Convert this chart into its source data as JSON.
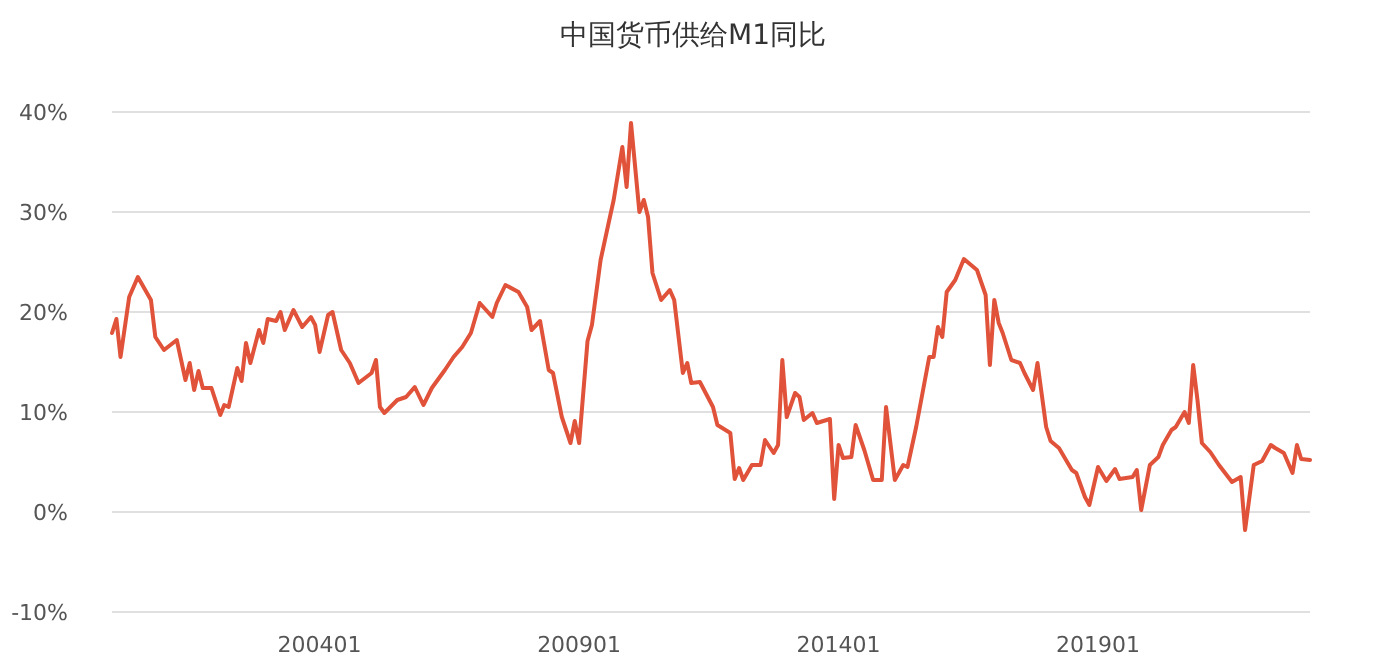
{
  "chart_data": {
    "type": "line",
    "title": "中国货币供给M1同比",
    "grid": "y",
    "marker": "none",
    "line_style": "solid",
    "xlim": [
      "2000-01",
      "2023-02"
    ],
    "xticks": [
      {
        "value": "2004-01",
        "label": "200401"
      },
      {
        "value": "2009-01",
        "label": "200901"
      },
      {
        "value": "2014-01",
        "label": "201401"
      },
      {
        "value": "2019-01",
        "label": "201901"
      }
    ],
    "ylim": [
      -10,
      40
    ],
    "yticks": [
      {
        "value": -10,
        "label": "-10%"
      },
      {
        "value": 0,
        "label": "0%"
      },
      {
        "value": 10,
        "label": "10%"
      },
      {
        "value": 20,
        "label": "20%"
      },
      {
        "value": 30,
        "label": "30%"
      },
      {
        "value": 40,
        "label": "40%"
      }
    ],
    "series": [
      {
        "color": "#e0533a",
        "x": [
          "2000-01",
          "2000-02",
          "2000-03",
          "2000-05",
          "2000-07",
          "2000-10",
          "2000-11",
          "2001-01",
          "2001-04",
          "2001-06",
          "2001-07",
          "2001-08",
          "2001-09",
          "2001-10",
          "2001-12",
          "2002-02",
          "2002-03",
          "2002-04",
          "2002-06",
          "2002-07",
          "2002-08",
          "2002-09",
          "2002-11",
          "2002-12",
          "2003-01",
          "2003-03",
          "2003-04",
          "2003-05",
          "2003-07",
          "2003-09",
          "2003-11",
          "2003-12",
          "2004-01",
          "2004-03",
          "2004-04",
          "2004-06",
          "2004-08",
          "2004-10",
          "2005-01",
          "2005-02",
          "2005-03",
          "2005-04",
          "2005-07",
          "2005-09",
          "2005-11",
          "2006-01",
          "2006-03",
          "2006-06",
          "2006-08",
          "2006-10",
          "2006-12",
          "2007-02",
          "2007-05",
          "2007-06",
          "2007-08",
          "2007-11",
          "2008-01",
          "2008-02",
          "2008-04",
          "2008-06",
          "2008-07",
          "2008-09",
          "2008-11",
          "2008-12",
          "2009-01",
          "2009-03",
          "2009-04",
          "2009-06",
          "2009-08",
          "2009-09",
          "2009-11",
          "2009-12",
          "2010-01",
          "2010-03",
          "2010-04",
          "2010-05",
          "2010-06",
          "2010-08",
          "2010-10",
          "2010-11",
          "2011-01",
          "2011-02",
          "2011-03",
          "2011-05",
          "2011-08",
          "2011-09",
          "2011-12",
          "2012-01",
          "2012-02",
          "2012-03",
          "2012-05",
          "2012-07",
          "2012-08",
          "2012-10",
          "2012-11",
          "2012-12",
          "2013-01",
          "2013-03",
          "2013-04",
          "2013-05",
          "2013-07",
          "2013-08",
          "2013-11",
          "2013-12",
          "2014-01",
          "2014-02",
          "2014-04",
          "2014-05",
          "2014-07",
          "2014-09",
          "2014-11",
          "2014-12",
          "2015-02",
          "2015-04",
          "2015-05",
          "2015-07",
          "2015-10",
          "2015-11",
          "2015-12",
          "2016-01",
          "2016-02",
          "2016-04",
          "2016-06",
          "2016-09",
          "2016-11",
          "2016-12",
          "2017-01",
          "2017-02",
          "2017-03",
          "2017-05",
          "2017-07",
          "2017-08",
          "2017-10",
          "2017-11",
          "2018-01",
          "2018-02",
          "2018-04",
          "2018-07",
          "2018-08",
          "2018-10",
          "2018-11",
          "2019-01",
          "2019-03",
          "2019-05",
          "2019-06",
          "2019-09",
          "2019-10",
          "2019-11",
          "2020-01",
          "2020-03",
          "2020-04",
          "2020-06",
          "2020-07",
          "2020-09",
          "2020-10",
          "2020-11",
          "2020-12",
          "2021-01",
          "2021-03",
          "2021-05",
          "2021-08",
          "2021-10",
          "2021-11",
          "2022-01",
          "2022-03",
          "2022-05",
          "2022-06",
          "2022-08",
          "2022-10",
          "2022-11",
          "2022-12",
          "2023-02"
        ],
        "values": [
          17.9,
          19.3,
          15.5,
          21.5,
          23.5,
          21.2,
          17.5,
          16.2,
          17.2,
          13.2,
          14.9,
          12.2,
          14.1,
          12.4,
          12.4,
          9.7,
          10.7,
          10.5,
          14.4,
          13.1,
          16.9,
          14.9,
          18.2,
          16.9,
          19.3,
          19.1,
          20.0,
          18.2,
          20.2,
          18.5,
          19.5,
          18.7,
          16.0,
          19.7,
          20.0,
          16.2,
          14.9,
          12.9,
          13.9,
          15.2,
          10.5,
          9.9,
          11.2,
          11.5,
          12.5,
          10.7,
          12.4,
          14.2,
          15.5,
          16.5,
          17.9,
          20.9,
          19.5,
          20.9,
          22.7,
          22.0,
          20.5,
          18.2,
          19.1,
          14.2,
          13.9,
          9.5,
          6.9,
          9.1,
          6.9,
          17.1,
          18.7,
          25.2,
          29.2,
          31.2,
          36.5,
          32.5,
          38.9,
          30.0,
          31.2,
          29.5,
          23.9,
          21.2,
          22.2,
          21.2,
          13.9,
          14.9,
          12.9,
          13.0,
          10.5,
          8.7,
          7.9,
          3.3,
          4.4,
          3.2,
          4.7,
          4.7,
          7.2,
          5.9,
          6.7,
          15.2,
          9.5,
          11.9,
          11.5,
          9.2,
          9.9,
          8.9,
          9.3,
          1.3,
          6.7,
          5.4,
          5.5,
          8.7,
          6.2,
          3.2,
          3.2,
          10.5,
          3.2,
          4.7,
          4.5,
          8.5,
          15.5,
          15.5,
          18.5,
          17.5,
          22.0,
          23.2,
          25.3,
          24.2,
          21.7,
          14.7,
          21.2,
          18.9,
          17.9,
          15.2,
          14.9,
          13.9,
          12.2,
          14.9,
          8.5,
          7.1,
          6.4,
          4.2,
          3.9,
          1.5,
          0.7,
          4.5,
          3.1,
          4.3,
          3.3,
          3.5,
          4.2,
          0.2,
          4.7,
          5.5,
          6.7,
          8.2,
          8.5,
          10.0,
          8.9,
          14.7,
          11.2,
          6.9,
          6.0,
          4.7,
          3.0,
          3.5,
          -1.8,
          4.7,
          5.1,
          6.7,
          6.4,
          5.9,
          3.9,
          6.7,
          5.3,
          5.2
        ]
      }
    ]
  }
}
